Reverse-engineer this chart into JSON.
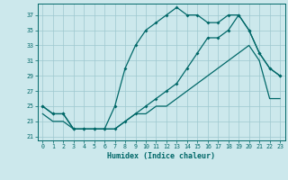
{
  "xlabel": "Humidex (Indice chaleur)",
  "bg_color": "#cce8ec",
  "grid_color": "#9dc8cf",
  "line_color": "#006868",
  "xlim": [
    -0.5,
    23.5
  ],
  "ylim": [
    20.5,
    38.5
  ],
  "xticks": [
    0,
    1,
    2,
    3,
    4,
    5,
    6,
    7,
    8,
    9,
    10,
    11,
    12,
    13,
    14,
    15,
    16,
    17,
    18,
    19,
    20,
    21,
    22,
    23
  ],
  "yticks": [
    21,
    23,
    25,
    27,
    29,
    31,
    33,
    35,
    37
  ],
  "series_max_x": [
    0,
    1,
    2,
    3,
    4,
    5,
    6,
    7,
    8,
    9,
    10,
    11,
    12,
    13,
    14,
    15,
    16,
    17,
    18,
    19,
    20,
    21,
    22,
    23
  ],
  "series_max_y": [
    25,
    24,
    24,
    22,
    22,
    22,
    22,
    25,
    30,
    33,
    35,
    36,
    37,
    38,
    37,
    37,
    36,
    36,
    37,
    37,
    35,
    32,
    30,
    29
  ],
  "series_mean_x": [
    0,
    1,
    2,
    3,
    4,
    5,
    6,
    7,
    8,
    9,
    10,
    11,
    12,
    13,
    14,
    15,
    16,
    17,
    18,
    19,
    20,
    21,
    22,
    23
  ],
  "series_mean_y": [
    25,
    24,
    24,
    22,
    22,
    22,
    22,
    22,
    23,
    24,
    25,
    26,
    27,
    28,
    30,
    32,
    34,
    34,
    35,
    37,
    35,
    32,
    30,
    29
  ],
  "series_min_x": [
    0,
    1,
    2,
    3,
    4,
    5,
    6,
    7,
    8,
    9,
    10,
    11,
    12,
    13,
    14,
    15,
    16,
    17,
    18,
    19,
    20,
    21,
    22,
    23
  ],
  "series_min_y": [
    24,
    23,
    23,
    22,
    22,
    22,
    22,
    22,
    23,
    24,
    24,
    25,
    25,
    26,
    27,
    28,
    29,
    30,
    31,
    32,
    33,
    31,
    26,
    26
  ]
}
